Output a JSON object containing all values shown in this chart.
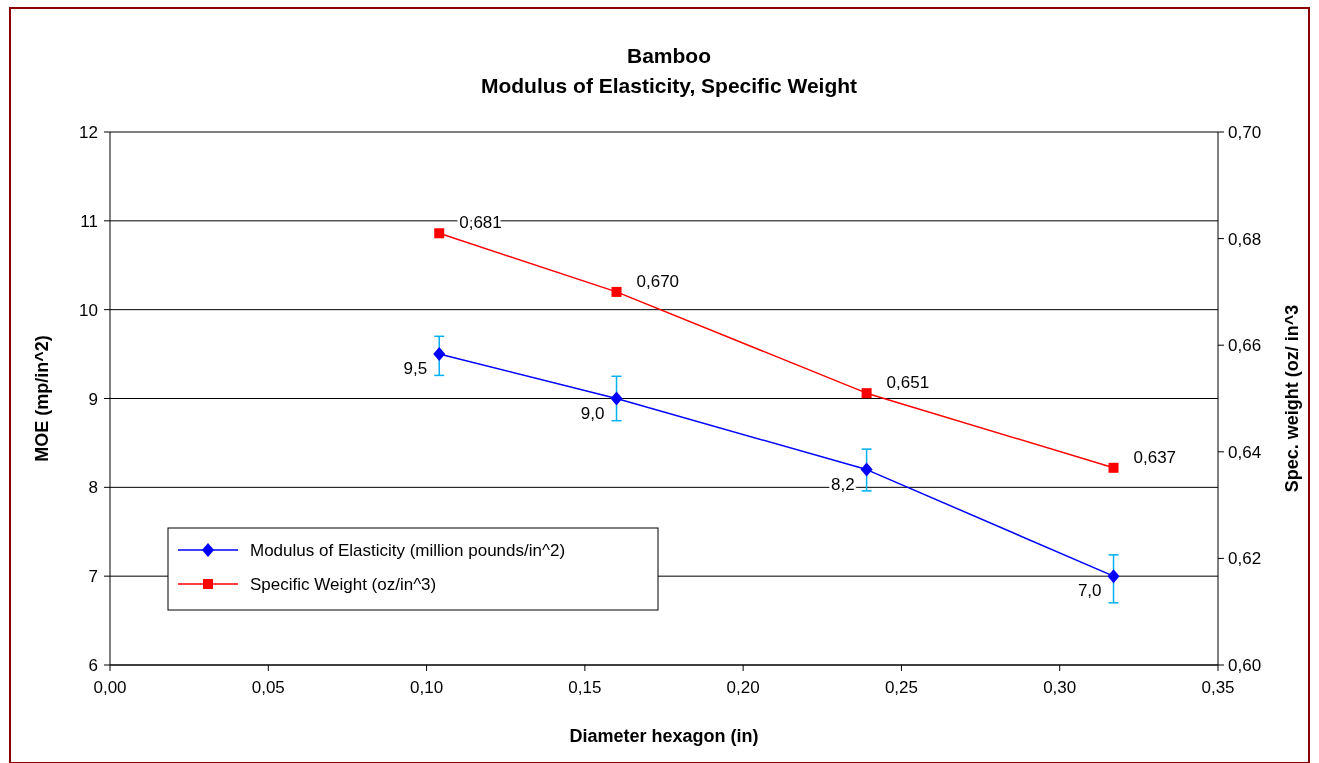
{
  "chart_data": {
    "type": "line",
    "title": "Bamboo\nModulus of Elasticity, Specific Weight",
    "xlabel": "Diameter hexagon (in)",
    "ylabel": "MOE (mp/in^2)",
    "y2label": "Spec. weight (oz/ in^3",
    "series": [
      {
        "name": "Modulus of Elasticity (million pounds/in^2)",
        "color": "#0000ff",
        "marker": "diamond",
        "x": [
          0.104,
          0.16,
          0.239,
          0.317
        ],
        "values": [
          9.5,
          9.0,
          8.2,
          7.0
        ],
        "errors": [
          [
            9.26,
            9.7
          ],
          [
            8.75,
            9.25
          ],
          [
            7.96,
            8.43
          ],
          [
            6.7,
            7.24
          ]
        ],
        "value_labels": [
          "9,5",
          "9,0",
          "8,2",
          "7,0"
        ]
      },
      {
        "name": "Specific  Weight (oz/in^3)",
        "color": "#ff0000",
        "marker": "square",
        "axis": "y2",
        "x": [
          0.104,
          0.16,
          0.239,
          0.317
        ],
        "values": [
          0.681,
          0.67,
          0.651,
          0.637
        ],
        "value_labels": [
          "0,681",
          "0,670",
          "0,651",
          "0,637"
        ]
      }
    ],
    "xlim": [
      0,
      0.35
    ],
    "xticks": [
      {
        "value": 0,
        "label": "0,00"
      },
      {
        "value": 0.05,
        "label": "0,05"
      },
      {
        "value": 0.1,
        "label": "0,10"
      },
      {
        "value": 0.15,
        "label": "0,15"
      },
      {
        "value": 0.2,
        "label": "0,20"
      },
      {
        "value": 0.25,
        "label": "0,25"
      },
      {
        "value": 0.3,
        "label": "0,30"
      },
      {
        "value": 0.35,
        "label": "0,35"
      }
    ],
    "ylim": [
      6,
      12
    ],
    "yticks": [
      6,
      7,
      8,
      9,
      10,
      11,
      12
    ],
    "y2lim": [
      0.6,
      0.7
    ],
    "y2ticks": [
      {
        "value": 0.6,
        "label": "0,60"
      },
      {
        "value": 0.62,
        "label": "0,62"
      },
      {
        "value": 0.64,
        "label": "0,64"
      },
      {
        "value": 0.66,
        "label": "0,66"
      },
      {
        "value": 0.68,
        "label": "0,68"
      },
      {
        "value": 0.7,
        "label": "0,70"
      }
    ],
    "grid": "y",
    "legend": "bottom left"
  }
}
